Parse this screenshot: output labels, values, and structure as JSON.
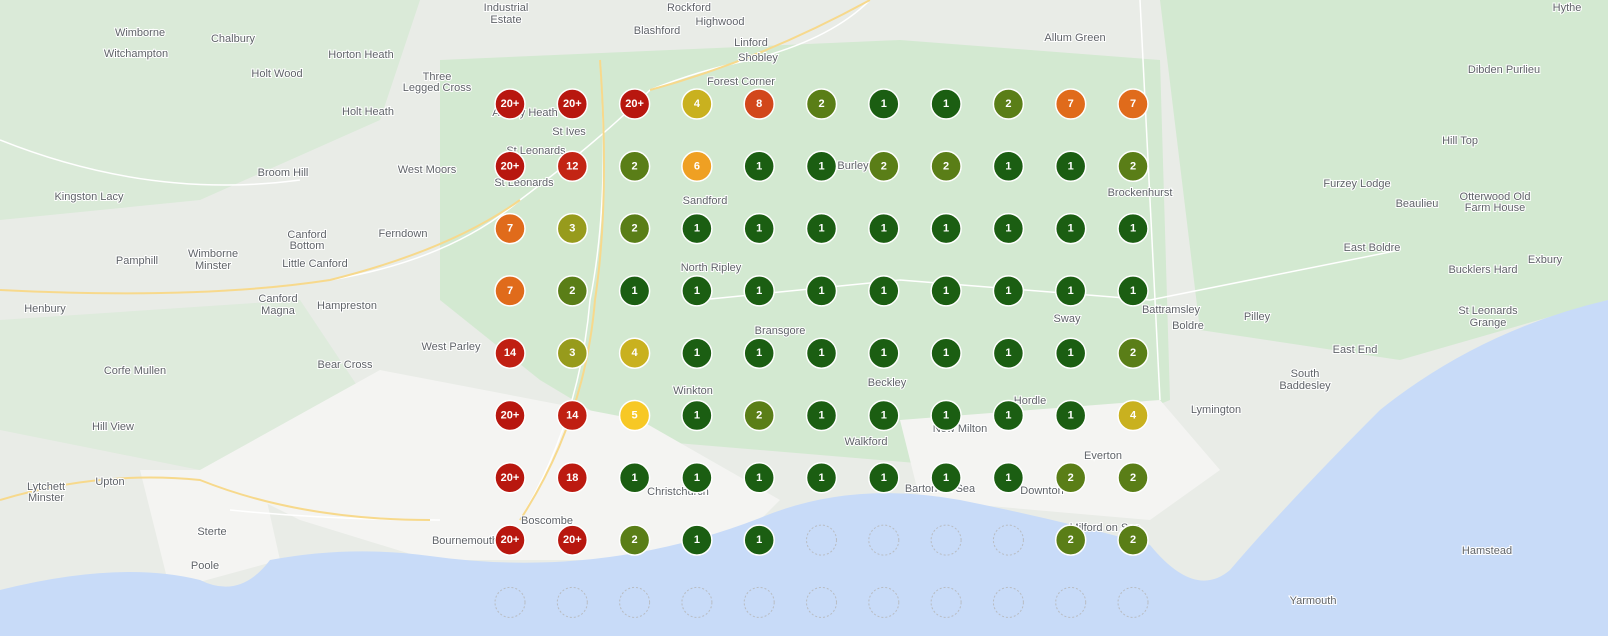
{
  "places": [
    "Wimborne",
    "Witchampton",
    "Chalbury",
    "Horton Heath",
    "Holt Wood",
    "Three",
    "Legged Cross",
    "Holt Heath",
    "Ashley Heath",
    "St Ives",
    "St Leonards",
    "St Leonards",
    "West Moors",
    "Broom Hill",
    "Kingston Lacy",
    "Canford",
    "Bottom",
    "Ferndown",
    "Pamphill",
    "Wimborne",
    "Minster",
    "Little Canford",
    "Henbury",
    "Canford",
    "Magna",
    "Hampreston",
    "West Parley",
    "Bear Cross",
    "Corfe Mullen",
    "Hill View",
    "Upton",
    "Lytchett",
    "Minster",
    "Sterte",
    "Poole",
    "Bournemouth",
    "Boscombe",
    "Christchurch",
    "Winkton",
    "Bransgore",
    "North Ripley",
    "Sandford",
    "Burley",
    "Beckley",
    "Walkford",
    "New Milton",
    "Barton on Sea",
    "Hordle",
    "Sway",
    "Everton",
    "Downton",
    "Milford on Sea",
    "Brockenhurst",
    "Battramsley",
    "Boldre",
    "Pilley",
    "Lymington",
    "East End",
    "South",
    "Baddesley",
    "Furzey Lodge",
    "Beaulieu",
    "East Boldre",
    "Bucklers Hard",
    "St Leonards",
    "Grange",
    "Hamstead",
    "Yarmouth",
    "Allum Green",
    "Rockford",
    "Highwood",
    "Blashford",
    "Linford",
    "Shobley",
    "Forest Corner",
    "Hill Top",
    "Dibden Purlieu",
    "Hythe",
    "Otterwood Old",
    "Farm House",
    "Exbury",
    "Industrial",
    "Estate"
  ],
  "grid": {
    "rows": [
      [
        "20+",
        "20+",
        "20+",
        "4",
        "8",
        "2",
        "1",
        "1",
        "2",
        "7",
        "7"
      ],
      [
        "20+",
        "12",
        "2",
        "6",
        "1",
        "1",
        "2",
        "2",
        "1",
        "1",
        "2"
      ],
      [
        "7",
        "3",
        "2",
        "1",
        "1",
        "1",
        "1",
        "1",
        "1",
        "1",
        "1"
      ],
      [
        "7",
        "2",
        "1",
        "1",
        "1",
        "1",
        "1",
        "1",
        "1",
        "1",
        "1"
      ],
      [
        "14",
        "3",
        "4",
        "1",
        "1",
        "1",
        "1",
        "1",
        "1",
        "1",
        "2"
      ],
      [
        "20+",
        "14",
        "5",
        "1",
        "2",
        "1",
        "1",
        "1",
        "1",
        "1",
        "4"
      ],
      [
        "20+",
        "18",
        "1",
        "1",
        "1",
        "1",
        "1",
        "1",
        "1",
        "2",
        "2"
      ],
      [
        "20+",
        "20+",
        "2",
        "1",
        "1",
        null,
        null,
        null,
        null,
        "2",
        "2"
      ],
      [
        null,
        null,
        null,
        null,
        null,
        null,
        null,
        null,
        null,
        null,
        null
      ]
    ],
    "palette": {
      "1": "#1b5e12",
      "2": "#5a7e17",
      "3": "#979b1c",
      "4": "#c9b11f",
      "5": "#f7c825",
      "6": "#efa023",
      "7": "#e06b1b",
      "8": "#d2471b",
      "12": "#c32514",
      "14": "#c01f12",
      "18": "#bc1a10",
      "20+": "#b8170f"
    }
  }
}
